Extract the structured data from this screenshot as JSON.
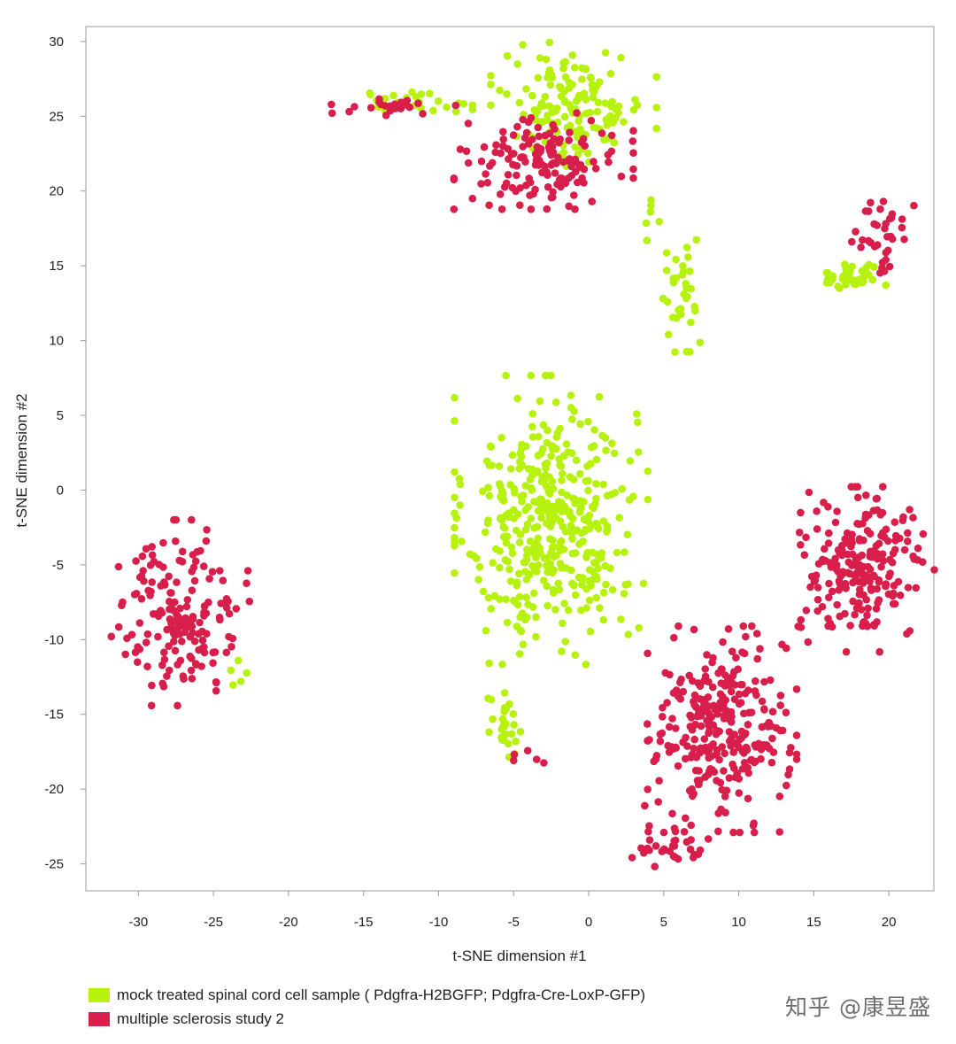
{
  "chart_data": {
    "type": "scatter",
    "title": "",
    "xlabel": "t-SNE dimension #1",
    "ylabel": "t-SNE dimension #2",
    "xlim": [
      -33.5,
      23
    ],
    "ylim": [
      -26.8,
      31
    ],
    "xticks": [
      -30,
      -25,
      -20,
      -15,
      -10,
      -5,
      0,
      5,
      10,
      15,
      20
    ],
    "yticks": [
      30,
      25,
      20,
      15,
      10,
      5,
      0,
      -5,
      -10,
      -15,
      -20,
      -25
    ],
    "grid": false,
    "legend_position": "bottom-left",
    "series": [
      {
        "name": "mock treated spinal cord cell sample ( Pdgfra-H2BGFP; Pdgfra-Cre-LoxP-GFP)",
        "color": "#b6f20e",
        "clusters": [
          {
            "cx": -2.5,
            "cy": -2.0,
            "sx": 2.8,
            "sy": 4.2,
            "n": 420
          },
          {
            "cx": -5.6,
            "cy": -16.2,
            "sx": 0.6,
            "sy": 1.2,
            "n": 26
          },
          {
            "cx": -1.0,
            "cy": 25.8,
            "sx": 2.4,
            "sy": 1.8,
            "n": 150
          },
          {
            "cx": -12.0,
            "cy": 26.0,
            "sx": 2.0,
            "sy": 0.35,
            "n": 28
          },
          {
            "cx": 6.2,
            "cy": 12.6,
            "sx": 0.7,
            "sy": 1.8,
            "n": 34
          },
          {
            "cx": 17.5,
            "cy": 14.3,
            "sx": 1.0,
            "sy": 0.5,
            "n": 40
          },
          {
            "cx": -23.3,
            "cy": -12.3,
            "sx": 0.3,
            "sy": 0.4,
            "n": 5
          },
          {
            "cx": 4.5,
            "cy": 18.3,
            "sx": 0.4,
            "sy": 0.7,
            "n": 6
          }
        ]
      },
      {
        "name": "multiple sclerosis study 2",
        "color": "#d81e4b",
        "clusters": [
          {
            "cx": -27.2,
            "cy": -8.2,
            "sx": 2.0,
            "sy": 2.7,
            "n": 170
          },
          {
            "cx": 8.8,
            "cy": -16.0,
            "sx": 2.2,
            "sy": 3.0,
            "n": 290
          },
          {
            "cx": 5.5,
            "cy": -23.8,
            "sx": 1.3,
            "sy": 0.6,
            "n": 32
          },
          {
            "cx": 18.2,
            "cy": -5.3,
            "sx": 2.1,
            "sy": 2.4,
            "n": 210
          },
          {
            "cx": -3.0,
            "cy": 22.0,
            "sx": 2.6,
            "sy": 1.4,
            "n": 150
          },
          {
            "cx": -13.0,
            "cy": 25.6,
            "sx": 1.8,
            "sy": 0.3,
            "n": 24
          },
          {
            "cx": 19.6,
            "cy": 17.2,
            "sx": 0.9,
            "sy": 1.3,
            "n": 35
          },
          {
            "cx": -4.0,
            "cy": -17.9,
            "sx": 0.6,
            "sy": 0.3,
            "n": 5
          }
        ]
      }
    ]
  },
  "legend": {
    "items": [
      {
        "label": "mock treated spinal cord cell sample ( Pdgfra-H2BGFP; Pdgfra-Cre-LoxP-GFP)",
        "color": "#b6f20e"
      },
      {
        "label": "multiple sclerosis study 2",
        "color": "#d81e4b"
      }
    ]
  },
  "watermark": "知乎 @康昱盛"
}
